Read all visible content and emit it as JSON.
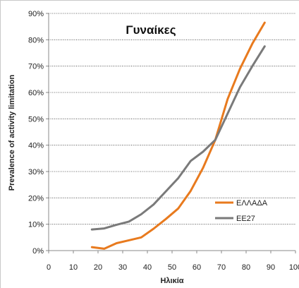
{
  "chart_data": {
    "type": "line",
    "title": "Γυναίκες",
    "xlabel": "Ηλικία",
    "ylabel": "Prevalence of activity limitation",
    "xlim": [
      0,
      100
    ],
    "ylim": [
      0,
      90
    ],
    "x_ticks": [
      "0",
      "10",
      "20",
      "30",
      "40",
      "50",
      "60",
      "70",
      "80",
      "90",
      "100"
    ],
    "y_ticks": [
      "0%",
      "10%",
      "20%",
      "30%",
      "40%",
      "50%",
      "60%",
      "70%",
      "80%",
      "90%"
    ],
    "grid": "horizontal",
    "legend_position": "right",
    "series": [
      {
        "name": "ΕΛΛΑΔΑ",
        "color": "#e87a1e",
        "x": [
          17.5,
          22.5,
          27.5,
          32.5,
          37.5,
          42.5,
          47.5,
          52.5,
          57.5,
          62.5,
          67.5,
          72.5,
          77.5,
          82.5,
          87.5
        ],
        "y": [
          1.3,
          0.7,
          2.8,
          3.9,
          5.0,
          8.3,
          12.0,
          16.0,
          22.6,
          31.3,
          42.0,
          57.5,
          69.0,
          78.5,
          86.5
        ]
      },
      {
        "name": "ΕΕ27",
        "color": "#7a7a7a",
        "x": [
          17.5,
          22.5,
          27.5,
          32.5,
          37.5,
          42.5,
          47.5,
          52.5,
          57.5,
          62.5,
          67.5,
          72.5,
          77.5,
          82.5,
          87.5
        ],
        "y": [
          8.0,
          8.4,
          9.8,
          11.0,
          13.8,
          17.5,
          22.5,
          27.5,
          34.0,
          37.5,
          42.0,
          52.0,
          62.0,
          70.0,
          77.5
        ]
      }
    ]
  }
}
